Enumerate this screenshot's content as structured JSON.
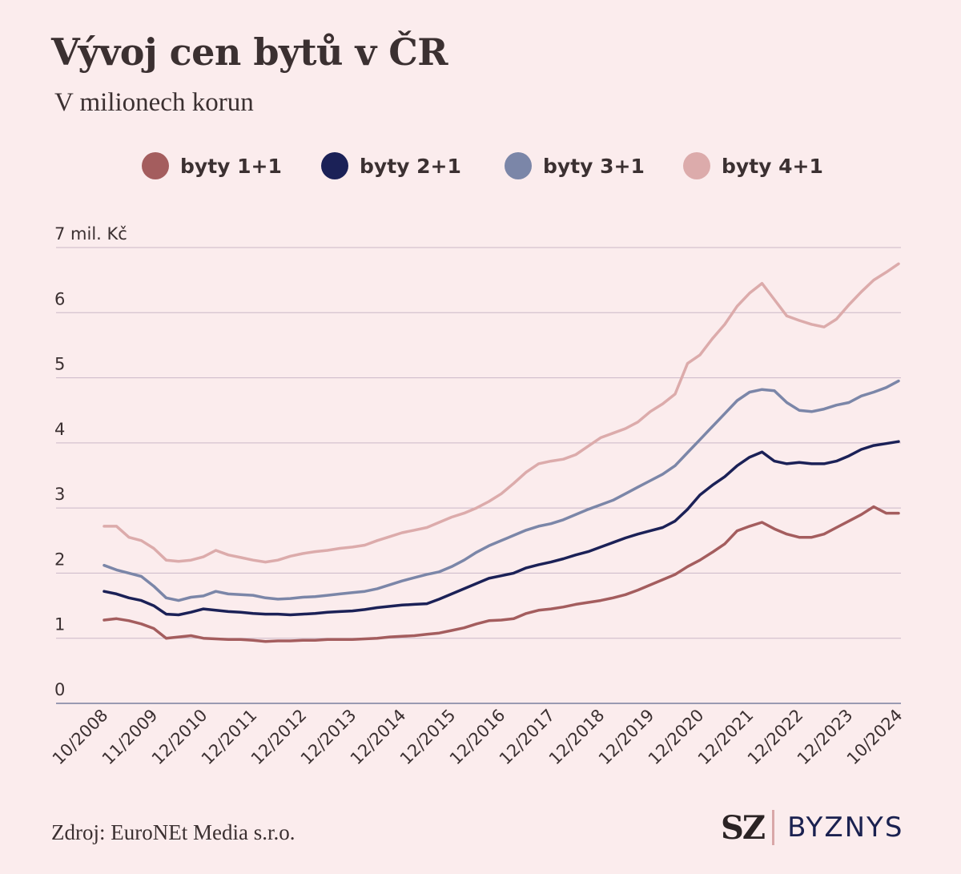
{
  "title": "Vývoj cen bytů v ČR",
  "subtitle": "V milionech korun",
  "source": "Zdroj: EuroNEt Media s.r.o.",
  "brand": {
    "mark": "SZ",
    "section": "BYZNYS"
  },
  "colors": {
    "background": "#fbeced",
    "byty_1_1": "#a45d5e",
    "byty_2_1": "#1b2157",
    "byty_3_1": "#7b86a8",
    "byty_4_1": "#dcabab",
    "gridline": "#cbb8c8",
    "axis": "#7b7f9f"
  },
  "chart_data": {
    "type": "line",
    "title": "Vývoj cen bytů v ČR",
    "subtitle": "V milionech korun",
    "y_unit_label": "7 mil. Kč",
    "ylim": [
      0,
      7
    ],
    "y_ticks": [
      "0",
      "1",
      "2",
      "3",
      "4",
      "5",
      "6",
      "7 mil. Kč"
    ],
    "x_ticks": [
      "10/2008",
      "11/2009",
      "12/2010",
      "12/2011",
      "12/2012",
      "12/2013",
      "12/2014",
      "12/2015",
      "12/2016",
      "12/2017",
      "12/2018",
      "12/2019",
      "12/2020",
      "12/2021",
      "12/2022",
      "12/2023",
      "10/2024"
    ],
    "grid": true,
    "legend_position": "top",
    "x": [
      2008.75,
      2009.0,
      2009.25,
      2009.5,
      2009.75,
      2010.0,
      2010.25,
      2010.5,
      2010.75,
      2011.0,
      2011.25,
      2011.5,
      2011.75,
      2012.0,
      2012.25,
      2012.5,
      2012.75,
      2013.0,
      2013.25,
      2013.5,
      2013.75,
      2014.0,
      2014.25,
      2014.5,
      2014.75,
      2015.0,
      2015.25,
      2015.5,
      2015.75,
      2016.0,
      2016.25,
      2016.5,
      2016.75,
      2017.0,
      2017.25,
      2017.5,
      2017.75,
      2018.0,
      2018.25,
      2018.5,
      2018.75,
      2019.0,
      2019.25,
      2019.5,
      2019.75,
      2020.0,
      2020.25,
      2020.5,
      2020.75,
      2021.0,
      2021.25,
      2021.5,
      2021.75,
      2022.0,
      2022.25,
      2022.5,
      2022.75,
      2023.0,
      2023.25,
      2023.5,
      2023.75,
      2024.0,
      2024.25,
      2024.5,
      2024.75
    ],
    "series": [
      {
        "name": "byty 1+1",
        "values": [
          1.28,
          1.3,
          1.27,
          1.22,
          1.15,
          1.0,
          1.02,
          1.04,
          1.0,
          0.99,
          0.98,
          0.98,
          0.97,
          0.95,
          0.96,
          0.96,
          0.97,
          0.97,
          0.98,
          0.98,
          0.98,
          0.99,
          1.0,
          1.02,
          1.03,
          1.04,
          1.06,
          1.08,
          1.12,
          1.16,
          1.22,
          1.27,
          1.28,
          1.3,
          1.38,
          1.43,
          1.45,
          1.48,
          1.52,
          1.55,
          1.58,
          1.62,
          1.67,
          1.74,
          1.82,
          1.9,
          1.98,
          2.1,
          2.2,
          2.32,
          2.45,
          2.65,
          2.72,
          2.78,
          2.68,
          2.6,
          2.55,
          2.55,
          2.6,
          2.7,
          2.8,
          2.9,
          3.02,
          2.92,
          2.92
        ]
      },
      {
        "name": "byty 2+1",
        "values": [
          1.72,
          1.68,
          1.62,
          1.58,
          1.5,
          1.37,
          1.36,
          1.4,
          1.45,
          1.43,
          1.41,
          1.4,
          1.38,
          1.37,
          1.37,
          1.36,
          1.37,
          1.38,
          1.4,
          1.41,
          1.42,
          1.44,
          1.47,
          1.49,
          1.51,
          1.52,
          1.53,
          1.6,
          1.68,
          1.76,
          1.84,
          1.92,
          1.96,
          2.0,
          2.08,
          2.13,
          2.17,
          2.22,
          2.28,
          2.33,
          2.4,
          2.47,
          2.54,
          2.6,
          2.65,
          2.7,
          2.8,
          2.98,
          3.2,
          3.35,
          3.48,
          3.65,
          3.78,
          3.86,
          3.72,
          3.68,
          3.7,
          3.68,
          3.68,
          3.72,
          3.8,
          3.9,
          3.96,
          3.99,
          4.02
        ]
      },
      {
        "name": "byty 3+1",
        "values": [
          2.12,
          2.05,
          2.0,
          1.95,
          1.8,
          1.62,
          1.58,
          1.63,
          1.65,
          1.72,
          1.68,
          1.67,
          1.66,
          1.62,
          1.6,
          1.61,
          1.63,
          1.64,
          1.66,
          1.68,
          1.7,
          1.72,
          1.76,
          1.82,
          1.88,
          1.93,
          1.98,
          2.02,
          2.1,
          2.2,
          2.32,
          2.42,
          2.5,
          2.58,
          2.66,
          2.72,
          2.76,
          2.82,
          2.9,
          2.98,
          3.05,
          3.12,
          3.22,
          3.32,
          3.42,
          3.52,
          3.65,
          3.85,
          4.05,
          4.25,
          4.45,
          4.65,
          4.78,
          4.82,
          4.8,
          4.62,
          4.5,
          4.48,
          4.52,
          4.58,
          4.62,
          4.72,
          4.78,
          4.85,
          4.95
        ]
      },
      {
        "name": "byty 4+1",
        "values": [
          2.72,
          2.72,
          2.55,
          2.5,
          2.38,
          2.2,
          2.18,
          2.2,
          2.25,
          2.35,
          2.28,
          2.24,
          2.2,
          2.17,
          2.2,
          2.26,
          2.3,
          2.33,
          2.35,
          2.38,
          2.4,
          2.43,
          2.5,
          2.56,
          2.62,
          2.66,
          2.7,
          2.78,
          2.86,
          2.92,
          3.0,
          3.1,
          3.22,
          3.38,
          3.55,
          3.68,
          3.72,
          3.75,
          3.82,
          3.95,
          4.08,
          4.15,
          4.22,
          4.32,
          4.48,
          4.6,
          4.75,
          5.22,
          5.35,
          5.6,
          5.82,
          6.1,
          6.3,
          6.45,
          6.2,
          5.95,
          5.88,
          5.82,
          5.78,
          5.9,
          6.12,
          6.32,
          6.5,
          6.62,
          6.75
        ]
      }
    ]
  }
}
